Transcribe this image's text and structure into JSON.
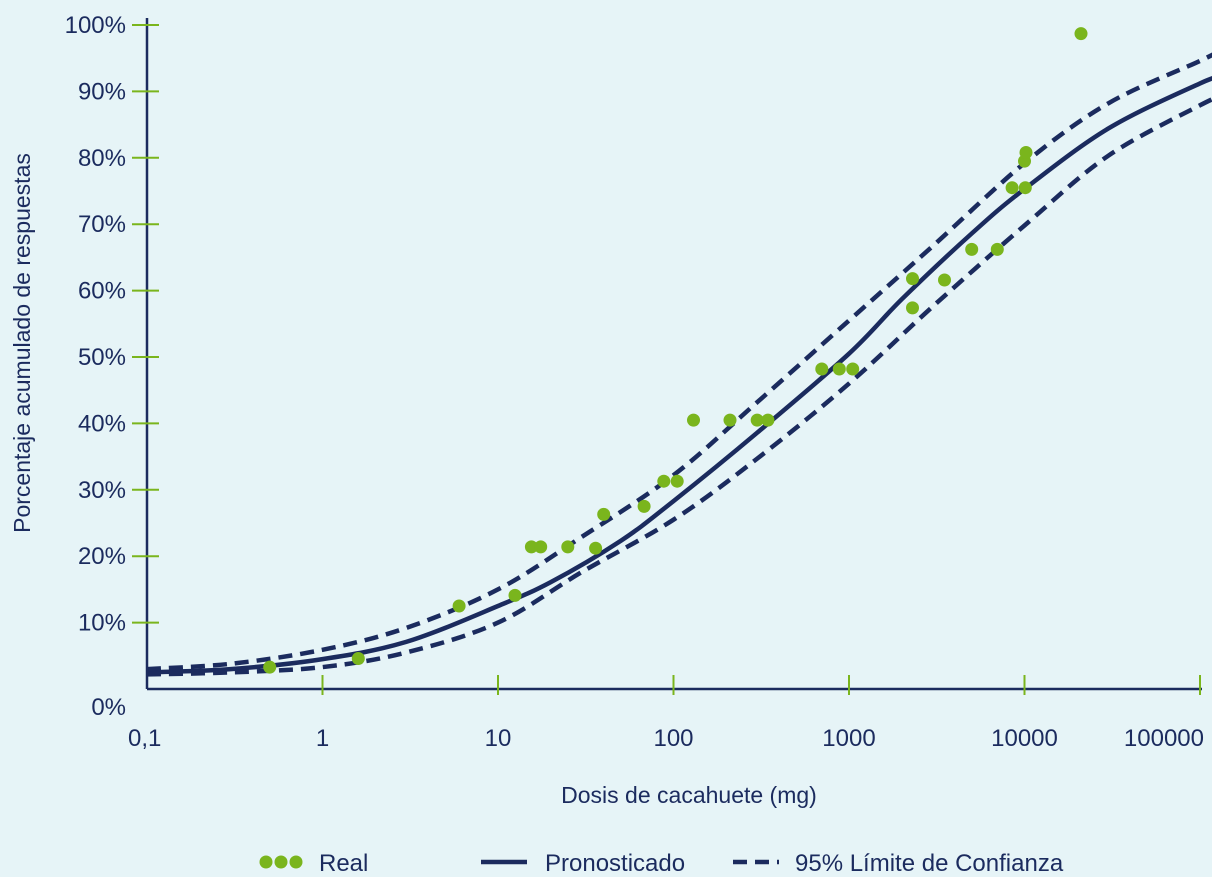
{
  "chart_data": {
    "type": "scatter",
    "x_scale": "log",
    "xlabel": "Dosis de cacahuete (mg)",
    "ylabel": "Porcentaje acumulado de respuestas",
    "x_ticks": [
      {
        "value": 0.1,
        "label": "0,1"
      },
      {
        "value": 1,
        "label": "1"
      },
      {
        "value": 10,
        "label": "10"
      },
      {
        "value": 100,
        "label": "100"
      },
      {
        "value": 1000,
        "label": "1000"
      },
      {
        "value": 10000,
        "label": "10000"
      },
      {
        "value": 100000,
        "label": "100000"
      }
    ],
    "y_ticks": [
      {
        "value": 0,
        "label": "0%"
      },
      {
        "value": 10,
        "label": "10%"
      },
      {
        "value": 20,
        "label": "20%"
      },
      {
        "value": 30,
        "label": "30%"
      },
      {
        "value": 40,
        "label": "40%"
      },
      {
        "value": 50,
        "label": "50%"
      },
      {
        "value": 60,
        "label": "60%"
      },
      {
        "value": 70,
        "label": "70%"
      },
      {
        "value": 80,
        "label": "80%"
      },
      {
        "value": 90,
        "label": "90%"
      },
      {
        "value": 100,
        "label": "100%"
      }
    ],
    "xlim": [
      0.1,
      100000
    ],
    "ylim": [
      0,
      100
    ],
    "grid": false,
    "legend_position": "bottom",
    "colors": {
      "background": "#e6f4f7",
      "axis": "#1b2b5e",
      "tick_marks": "#7ab51d",
      "real_points": "#7ab51d",
      "predicted_line": "#1b2b5e",
      "ci_lines": "#1b2b5e"
    },
    "series": [
      {
        "name": "Real",
        "kind": "points",
        "points": [
          [
            0.5,
            3.3
          ],
          [
            1.6,
            4.6
          ],
          [
            6,
            12.5
          ],
          [
            12.5,
            14.1
          ],
          [
            15.5,
            21.4
          ],
          [
            17.5,
            21.4
          ],
          [
            25,
            21.4
          ],
          [
            36,
            21.2
          ],
          [
            40,
            26.3
          ],
          [
            68,
            27.5
          ],
          [
            88,
            31.3
          ],
          [
            105,
            31.3
          ],
          [
            130,
            40.5
          ],
          [
            210,
            40.5
          ],
          [
            300,
            40.5
          ],
          [
            345,
            40.5
          ],
          [
            700,
            48.2
          ],
          [
            880,
            48.2
          ],
          [
            1050,
            48.2
          ],
          [
            2300,
            57.4
          ],
          [
            2300,
            61.8
          ],
          [
            3500,
            61.6
          ],
          [
            5000,
            66.2
          ],
          [
            7000,
            66.2
          ],
          [
            8500,
            75.5
          ],
          [
            10100,
            75.5
          ],
          [
            10000,
            79.5
          ],
          [
            10200,
            80.8
          ],
          [
            21000,
            98.7
          ]
        ]
      },
      {
        "name": "Pronosticado",
        "kind": "solid",
        "points": [
          [
            0.1,
            2.5
          ],
          [
            0.3,
            3.0
          ],
          [
            1,
            4.5
          ],
          [
            3,
            7.1
          ],
          [
            10,
            12.5
          ],
          [
            20,
            16.1
          ],
          [
            50,
            22.3
          ],
          [
            100,
            28.3
          ],
          [
            300,
            38.6
          ],
          [
            1000,
            50.5
          ],
          [
            2000,
            58.7
          ],
          [
            5000,
            68.6
          ],
          [
            10000,
            75.3
          ],
          [
            30000,
            84.4
          ],
          [
            100000,
            91.2
          ],
          [
            140000,
            92.5
          ]
        ]
      },
      {
        "name": "95% Límite de Confianza",
        "kind": "dashed",
        "points": [
          [
            0.1,
            3.0
          ],
          [
            0.3,
            3.8
          ],
          [
            1,
            5.9
          ],
          [
            3,
            9.2
          ],
          [
            10,
            15.0
          ],
          [
            30,
            22.9
          ],
          [
            100,
            32.2
          ],
          [
            300,
            43.2
          ],
          [
            1000,
            55.5
          ],
          [
            3000,
            66.7
          ],
          [
            10000,
            79.2
          ],
          [
            30000,
            88.2
          ],
          [
            100000,
            94.6
          ],
          [
            140000,
            96.6
          ]
        ]
      },
      {
        "name": "95% Límite de Confianza",
        "kind": "dashed",
        "legend": false,
        "points": [
          [
            0.1,
            2.2
          ],
          [
            0.3,
            2.5
          ],
          [
            1,
            3.3
          ],
          [
            3,
            5.5
          ],
          [
            10,
            10.0
          ],
          [
            30,
            17.6
          ],
          [
            100,
            25.5
          ],
          [
            300,
            34.7
          ],
          [
            1000,
            46.0
          ],
          [
            3000,
            57.6
          ],
          [
            10000,
            69.8
          ],
          [
            30000,
            80.3
          ],
          [
            100000,
            87.9
          ],
          [
            140000,
            89.6
          ]
        ]
      }
    ]
  },
  "legend": {
    "real_label": "Real",
    "predicted_label": "Pronosticado",
    "ci_label": "95% Límite de Confianza"
  }
}
